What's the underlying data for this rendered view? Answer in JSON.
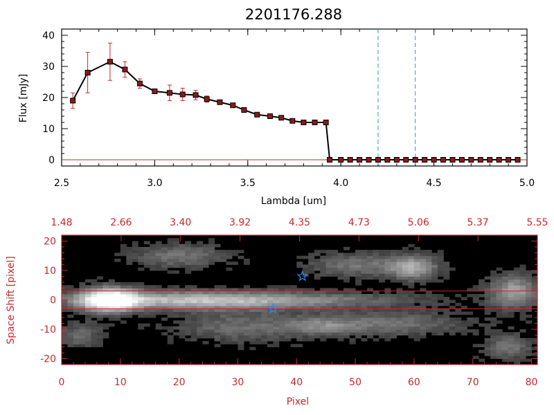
{
  "chart_data": [
    {
      "type": "line",
      "title": "2201176.288",
      "xlabel": "Lambda [um]",
      "ylabel": "Flux [mJy]",
      "xlim": [
        2.5,
        5.0
      ],
      "ylim": [
        -2,
        42
      ],
      "x_ticks": [
        "2.5",
        "3.0",
        "3.5",
        "4.0",
        "4.5",
        "5.0"
      ],
      "y_ticks": [
        "0",
        "10",
        "20",
        "30",
        "40"
      ],
      "grid": false,
      "series": [
        {
          "x": [
            2.56,
            2.64,
            2.76,
            2.84,
            2.92,
            3.0,
            3.08,
            3.15,
            3.22,
            3.28,
            3.35,
            3.42,
            3.48,
            3.55,
            3.62,
            3.68,
            3.74,
            3.8,
            3.86,
            3.92,
            3.94,
            4.0,
            4.05,
            4.1,
            4.15,
            4.2,
            4.25,
            4.3,
            4.35,
            4.4,
            4.45,
            4.5,
            4.55,
            4.6,
            4.65,
            4.7,
            4.75,
            4.8,
            4.85,
            4.9,
            4.95
          ],
          "y": [
            19.0,
            28.0,
            31.5,
            29.0,
            24.5,
            22.0,
            21.5,
            21.0,
            20.8,
            19.5,
            18.5,
            17.5,
            16.0,
            14.5,
            14.0,
            13.5,
            12.5,
            12.0,
            12.0,
            12.0,
            0,
            0,
            0,
            0,
            0,
            0,
            0,
            0,
            0,
            0,
            0,
            0,
            0,
            0,
            0,
            0,
            0,
            0,
            0,
            0,
            0
          ],
          "yerr": [
            2.5,
            6.5,
            6.0,
            2.5,
            1.5,
            0.5,
            2.5,
            2.0,
            1.5,
            1.0,
            0.5,
            0.3,
            0.3,
            0.3,
            0.3,
            0.3,
            0.3,
            0.3,
            0.3,
            0.3,
            0,
            0,
            0,
            0,
            0,
            0,
            0,
            0,
            0,
            0,
            0,
            0,
            0,
            0,
            0,
            0,
            0,
            0,
            0,
            0,
            0
          ],
          "line_color": "#000000",
          "marker_color": "#8b1a1a",
          "error_color": "#cc2222"
        }
      ],
      "vlines": [
        4.2,
        4.4
      ],
      "vline_color": "#1f8fff",
      "hline": 0,
      "hline_color": "#cc2222"
    },
    {
      "type": "heatmap",
      "xlabel": "Pixel",
      "ylabel": "Space Shift [pixel]",
      "xlim": [
        0,
        81
      ],
      "ylim": [
        -22,
        22
      ],
      "x_ticks": [
        "0",
        "10",
        "20",
        "30",
        "40",
        "50",
        "60",
        "70",
        "80"
      ],
      "y_ticks": [
        "-20",
        "-10",
        "0",
        "10",
        "20"
      ],
      "top_ticks": [
        "1.48",
        "2.66",
        "3.40",
        "3.92",
        "4.35",
        "4.73",
        "5.06",
        "5.37",
        "5.55"
      ],
      "axis_color": "#c8262b",
      "hlines": [
        3,
        -3
      ],
      "hline_color": "#cc2222",
      "stars": [
        {
          "x": 41,
          "y": 8
        },
        {
          "x": 36,
          "y": -3
        }
      ],
      "star_color": "#2a8cff",
      "blobs": [
        {
          "x": 8,
          "y": 0,
          "sx": 3.5,
          "sy": 3,
          "v": 1.0
        },
        {
          "x": 20,
          "y": 0,
          "sx": 14,
          "sy": 2.2,
          "v": 0.55
        },
        {
          "x": 40,
          "y": 0,
          "sx": 16,
          "sy": 2,
          "v": 0.32
        },
        {
          "x": 77,
          "y": 3,
          "sx": 3,
          "sy": 4,
          "v": 0.55
        },
        {
          "x": 60,
          "y": 11,
          "sx": 3,
          "sy": 3,
          "v": 0.55
        },
        {
          "x": 50,
          "y": 12,
          "sx": 6,
          "sy": 3,
          "v": 0.35
        },
        {
          "x": 20,
          "y": 15,
          "sx": 6,
          "sy": 3,
          "v": 0.35
        },
        {
          "x": 30,
          "y": -9,
          "sx": 8,
          "sy": 4,
          "v": 0.3
        },
        {
          "x": 55,
          "y": -8,
          "sx": 10,
          "sy": 3,
          "v": 0.35
        },
        {
          "x": 3,
          "y": -12,
          "sx": 3,
          "sy": 3,
          "v": 0.3
        },
        {
          "x": 76,
          "y": -16,
          "sx": 3,
          "sy": 3,
          "v": 0.35
        },
        {
          "x": 44,
          "y": -9,
          "sx": 4,
          "sy": 2,
          "v": 0.25
        }
      ]
    }
  ]
}
